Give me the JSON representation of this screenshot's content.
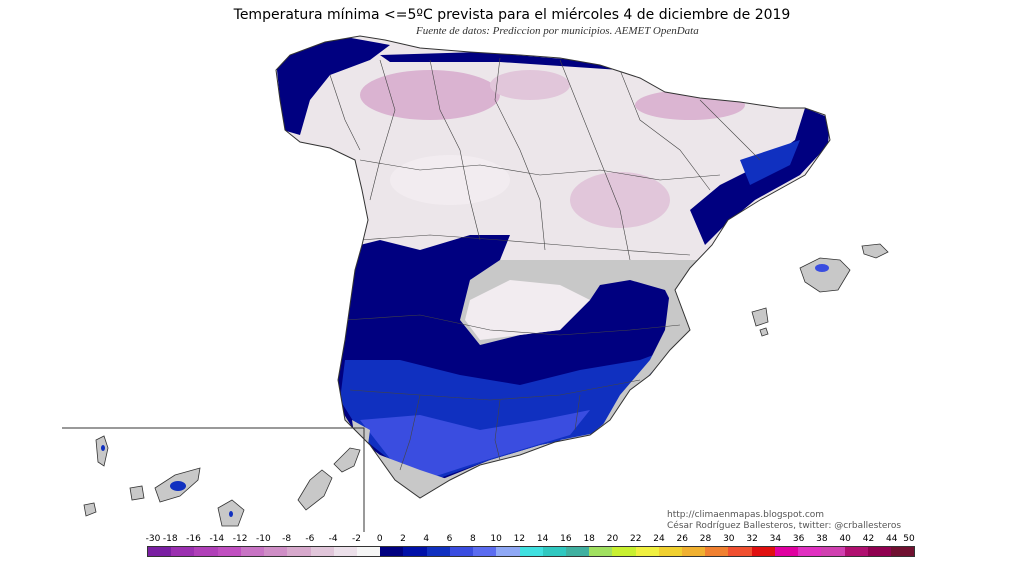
{
  "title": "Temperatura mínima <=5ºC prevista para el miércoles 4 de diciembre de 2019",
  "source": "Fuente de datos: Prediccion por municipios. AEMET OpenData",
  "credits": {
    "url": "http://climaenmapas.blogspot.com",
    "author": "César Rodríguez Ballesteros, twitter: @crballesteros"
  },
  "colors": {
    "ocean": "#ffffff",
    "land_above_threshold": "#c8c8c8",
    "frost_light": "#e8dbe4",
    "frost_pink": "#d7a9cc",
    "cold_0_2": "#000080",
    "cold_2_4": "#1030c0",
    "cold_4_6": "#3a4de0",
    "cold_6_8": "#5b6cf0",
    "borders": "#333333"
  },
  "legend": {
    "labels": [
      "-30",
      "-18",
      "-16",
      "-14",
      "-12",
      "-10",
      "-8",
      "-6",
      "-4",
      "-2",
      "0",
      "2",
      "4",
      "6",
      "8",
      "10",
      "12",
      "14",
      "16",
      "18",
      "20",
      "22",
      "24",
      "26",
      "28",
      "30",
      "32",
      "34",
      "36",
      "38",
      "40",
      "42",
      "44",
      "50"
    ],
    "colors": [
      "#7a1fa2",
      "#9b30b0",
      "#b040b8",
      "#c04fc0",
      "#c874c4",
      "#cf8ec6",
      "#d7a9cc",
      "#e1c6da",
      "#ece0ea",
      "#f6f6f6",
      "#000080",
      "#0010a8",
      "#1030c0",
      "#3a4de0",
      "#5b6cf0",
      "#8fa8f5",
      "#40e0e0",
      "#30c8c0",
      "#40b0a0",
      "#a0e060",
      "#c8f030",
      "#f0f040",
      "#f0d030",
      "#f0b030",
      "#f08030",
      "#f05030",
      "#e01010",
      "#e000a0",
      "#e030c0",
      "#d040b0",
      "#b01070",
      "#900050",
      "#701030"
    ]
  }
}
